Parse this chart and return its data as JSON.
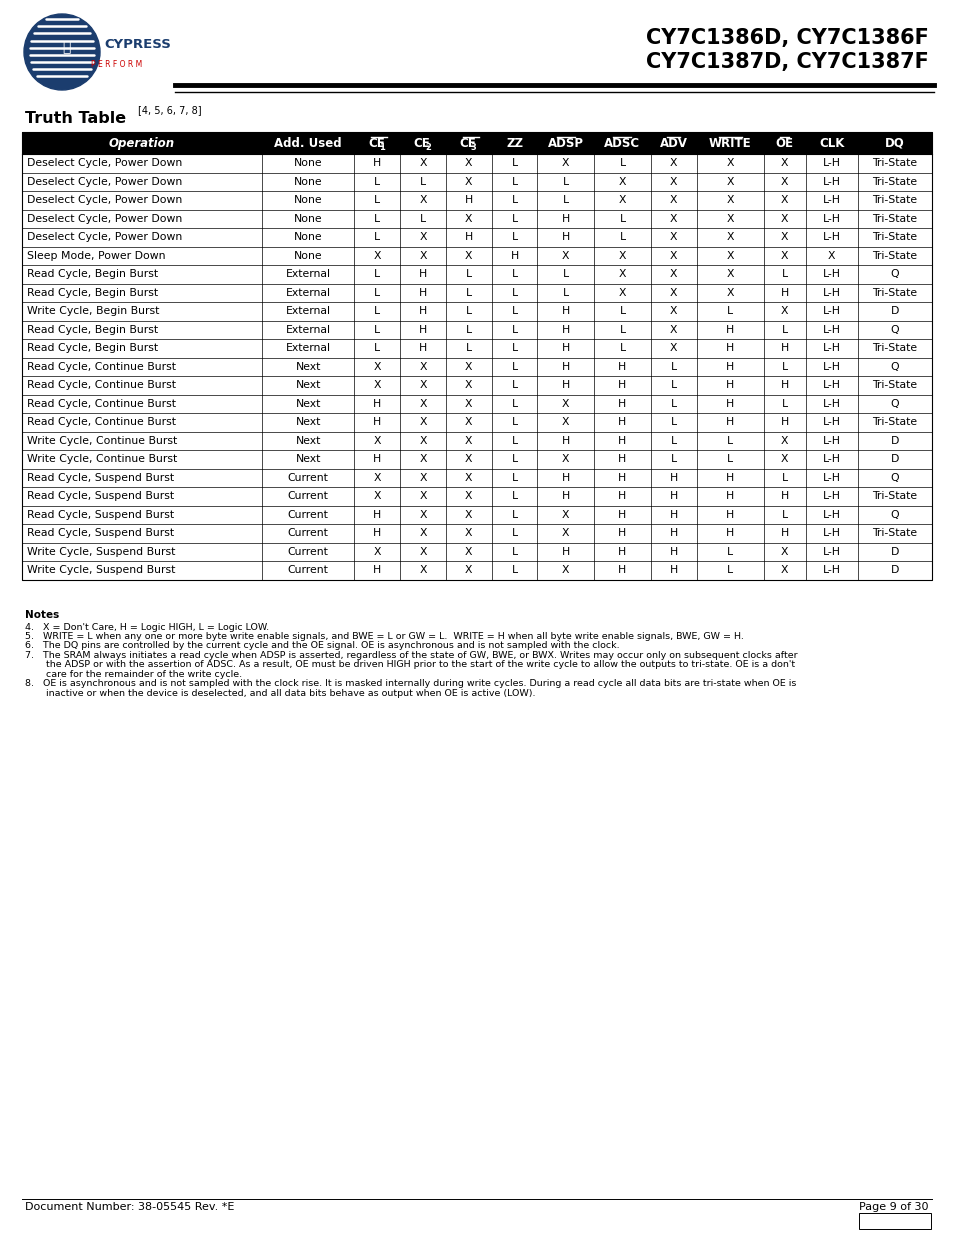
{
  "title_line1": "CY7C1386D, CY7C1386F",
  "title_line2": "CY7C1387D, CY7C1387F",
  "table_title": "Truth Table",
  "table_superscript": "[4, 5, 6, 7, 8]",
  "headers": [
    "Operation",
    "Add. Used",
    "CE1",
    "CE2",
    "CE3",
    "ZZ",
    "ADSP",
    "ADSC",
    "ADV",
    "WRITE",
    "OE",
    "CLK",
    "DQ"
  ],
  "headers_overline": [
    false,
    false,
    true,
    false,
    true,
    false,
    true,
    true,
    true,
    true,
    true,
    false,
    false
  ],
  "headers_subscript": [
    false,
    false,
    true,
    true,
    true,
    false,
    false,
    false,
    false,
    false,
    false,
    false,
    false
  ],
  "col_widths": [
    2.2,
    0.85,
    0.42,
    0.42,
    0.42,
    0.42,
    0.52,
    0.52,
    0.42,
    0.62,
    0.38,
    0.48,
    0.68
  ],
  "rows": [
    [
      "Deselect Cycle, Power Down",
      "None",
      "H",
      "X",
      "X",
      "L",
      "X",
      "L",
      "X",
      "X",
      "X",
      "L-H",
      "Tri-State"
    ],
    [
      "Deselect Cycle, Power Down",
      "None",
      "L",
      "L",
      "X",
      "L",
      "L",
      "X",
      "X",
      "X",
      "X",
      "L-H",
      "Tri-State"
    ],
    [
      "Deselect Cycle, Power Down",
      "None",
      "L",
      "X",
      "H",
      "L",
      "L",
      "X",
      "X",
      "X",
      "X",
      "L-H",
      "Tri-State"
    ],
    [
      "Deselect Cycle, Power Down",
      "None",
      "L",
      "L",
      "X",
      "L",
      "H",
      "L",
      "X",
      "X",
      "X",
      "L-H",
      "Tri-State"
    ],
    [
      "Deselect Cycle, Power Down",
      "None",
      "L",
      "X",
      "H",
      "L",
      "H",
      "L",
      "X",
      "X",
      "X",
      "L-H",
      "Tri-State"
    ],
    [
      "Sleep Mode, Power Down",
      "None",
      "X",
      "X",
      "X",
      "H",
      "X",
      "X",
      "X",
      "X",
      "X",
      "X",
      "Tri-State"
    ],
    [
      "Read Cycle, Begin Burst",
      "External",
      "L",
      "H",
      "L",
      "L",
      "L",
      "X",
      "X",
      "X",
      "L",
      "L-H",
      "Q"
    ],
    [
      "Read Cycle, Begin Burst",
      "External",
      "L",
      "H",
      "L",
      "L",
      "L",
      "X",
      "X",
      "X",
      "H",
      "L-H",
      "Tri-State"
    ],
    [
      "Write Cycle, Begin Burst",
      "External",
      "L",
      "H",
      "L",
      "L",
      "H",
      "L",
      "X",
      "L",
      "X",
      "L-H",
      "D"
    ],
    [
      "Read Cycle, Begin Burst",
      "External",
      "L",
      "H",
      "L",
      "L",
      "H",
      "L",
      "X",
      "H",
      "L",
      "L-H",
      "Q"
    ],
    [
      "Read Cycle, Begin Burst",
      "External",
      "L",
      "H",
      "L",
      "L",
      "H",
      "L",
      "X",
      "H",
      "H",
      "L-H",
      "Tri-State"
    ],
    [
      "Read Cycle, Continue Burst",
      "Next",
      "X",
      "X",
      "X",
      "L",
      "H",
      "H",
      "L",
      "H",
      "L",
      "L-H",
      "Q"
    ],
    [
      "Read Cycle, Continue Burst",
      "Next",
      "X",
      "X",
      "X",
      "L",
      "H",
      "H",
      "L",
      "H",
      "H",
      "L-H",
      "Tri-State"
    ],
    [
      "Read Cycle, Continue Burst",
      "Next",
      "H",
      "X",
      "X",
      "L",
      "X",
      "H",
      "L",
      "H",
      "L",
      "L-H",
      "Q"
    ],
    [
      "Read Cycle, Continue Burst",
      "Next",
      "H",
      "X",
      "X",
      "L",
      "X",
      "H",
      "L",
      "H",
      "H",
      "L-H",
      "Tri-State"
    ],
    [
      "Write Cycle, Continue Burst",
      "Next",
      "X",
      "X",
      "X",
      "L",
      "H",
      "H",
      "L",
      "L",
      "X",
      "L-H",
      "D"
    ],
    [
      "Write Cycle, Continue Burst",
      "Next",
      "H",
      "X",
      "X",
      "L",
      "X",
      "H",
      "L",
      "L",
      "X",
      "L-H",
      "D"
    ],
    [
      "Read Cycle, Suspend Burst",
      "Current",
      "X",
      "X",
      "X",
      "L",
      "H",
      "H",
      "H",
      "H",
      "L",
      "L-H",
      "Q"
    ],
    [
      "Read Cycle, Suspend Burst",
      "Current",
      "X",
      "X",
      "X",
      "L",
      "H",
      "H",
      "H",
      "H",
      "H",
      "L-H",
      "Tri-State"
    ],
    [
      "Read Cycle, Suspend Burst",
      "Current",
      "H",
      "X",
      "X",
      "L",
      "X",
      "H",
      "H",
      "H",
      "L",
      "L-H",
      "Q"
    ],
    [
      "Read Cycle, Suspend Burst",
      "Current",
      "H",
      "X",
      "X",
      "L",
      "X",
      "H",
      "H",
      "H",
      "H",
      "L-H",
      "Tri-State"
    ],
    [
      "Write Cycle, Suspend Burst",
      "Current",
      "X",
      "X",
      "X",
      "L",
      "H",
      "H",
      "H",
      "L",
      "X",
      "L-H",
      "D"
    ],
    [
      "Write Cycle, Suspend Burst",
      "Current",
      "H",
      "X",
      "X",
      "L",
      "X",
      "H",
      "H",
      "L",
      "X",
      "L-H",
      "D"
    ]
  ],
  "footer_left": "Document Number: 38-05545 Rev. *E",
  "footer_right": "Page 9 of 30"
}
